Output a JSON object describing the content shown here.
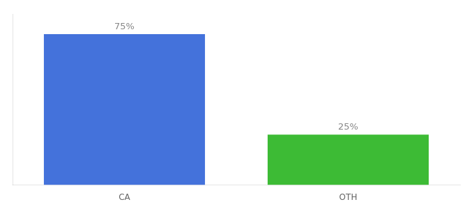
{
  "chart_data": {
    "type": "bar",
    "categories": [
      "CA",
      "OTH"
    ],
    "values": [
      75,
      25
    ],
    "colors": [
      "#4472db",
      "#3dbb35"
    ],
    "data_labels": true,
    "value_labels": [
      "75%",
      "25%"
    ],
    "ylim": [
      0,
      85
    ],
    "tick_labels": "x",
    "grid": false
  }
}
